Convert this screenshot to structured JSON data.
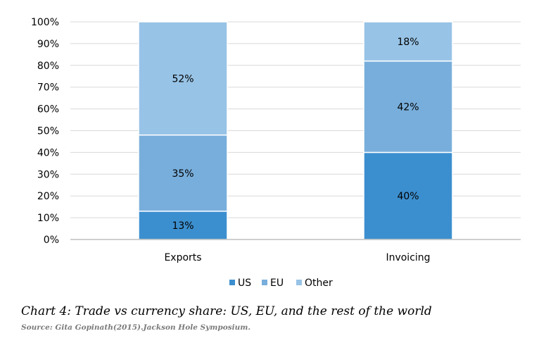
{
  "chart_data": {
    "type": "bar",
    "stacked": true,
    "categories": [
      "Exports",
      "Invoicing"
    ],
    "series": [
      {
        "name": "US",
        "values": [
          13,
          40
        ],
        "labels": [
          "13%",
          "40%"
        ],
        "color": "#3c8fcf"
      },
      {
        "name": "EU",
        "values": [
          35,
          42
        ],
        "labels": [
          "35%",
          "42%"
        ],
        "color": "#78aedb"
      },
      {
        "name": "Other",
        "values": [
          52,
          18
        ],
        "labels": [
          "52%",
          "18%"
        ],
        "color": "#97c3e6"
      }
    ],
    "ylim": [
      0,
      100
    ],
    "yticks": [
      0,
      10,
      20,
      30,
      40,
      50,
      60,
      70,
      80,
      90,
      100
    ],
    "ytick_labels": [
      "0%",
      "10%",
      "20%",
      "30%",
      "40%",
      "50%",
      "60%",
      "70%",
      "80%",
      "90%",
      "100%"
    ],
    "grid": true,
    "legend_position": "bottom"
  },
  "caption": "Chart 4: Trade vs currency share: US, EU, and the rest of the world",
  "source": "Source: Gita Gopinath(2015).Jackson Hole Symposium."
}
